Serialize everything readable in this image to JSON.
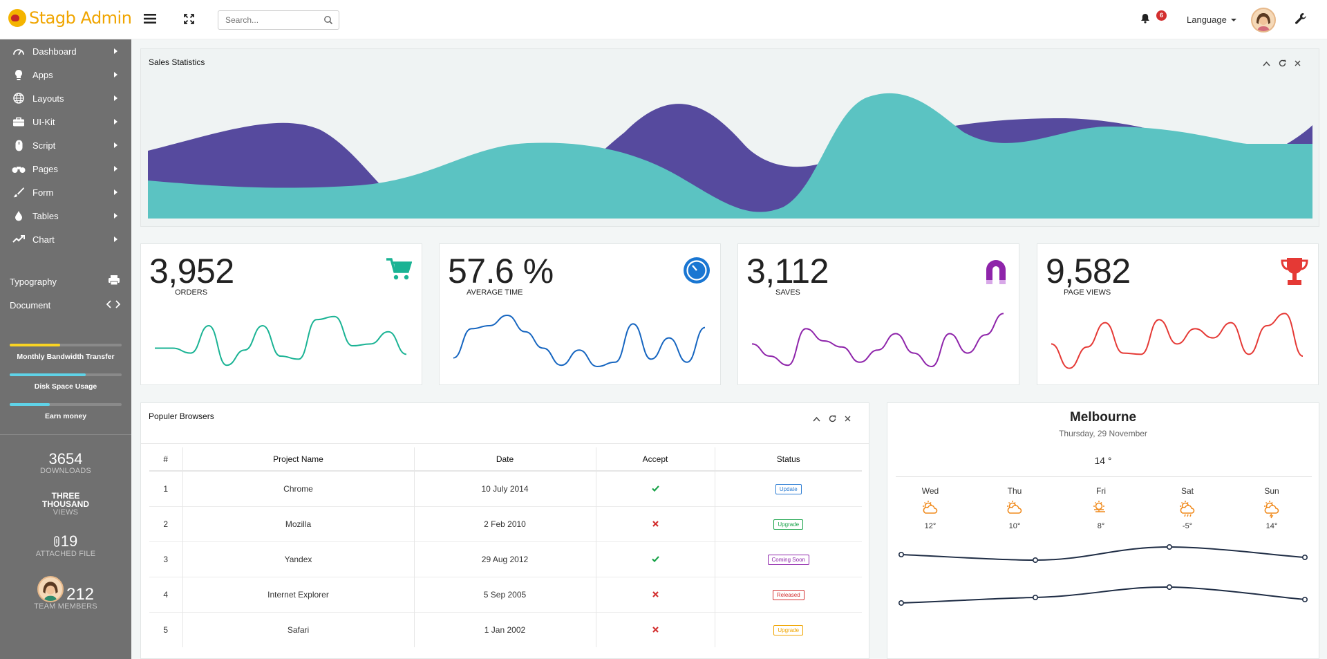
{
  "app": {
    "logo_text": "Stagb Admin"
  },
  "header": {
    "search_placeholder": "Search...",
    "notification_count": "6",
    "language_label": "Language"
  },
  "sidebar": {
    "nav": [
      {
        "label": "Dashboard",
        "icon": "speedometer-icon"
      },
      {
        "label": "Apps",
        "icon": "lightbulb-icon"
      },
      {
        "label": "Layouts",
        "icon": "globe-icon"
      },
      {
        "label": "UI-Kit",
        "icon": "briefcase-icon"
      },
      {
        "label": "Script",
        "icon": "mouse-icon"
      },
      {
        "label": "Pages",
        "icon": "binoculars-icon"
      },
      {
        "label": "Form",
        "icon": "brush-icon"
      },
      {
        "label": "Tables",
        "icon": "drop-icon"
      },
      {
        "label": "Chart",
        "icon": "trend-icon"
      }
    ],
    "extras": [
      {
        "label": "Typography",
        "icon": "printer-icon"
      },
      {
        "label": "Document",
        "icon": "code-icon"
      }
    ],
    "progress": [
      {
        "label": "Monthly Bandwidth Transfer",
        "value": 0.45,
        "color": "#f9d423"
      },
      {
        "label": "Disk Space Usage",
        "value": 0.68,
        "color": "#5fd3e8"
      },
      {
        "label": "Earn money",
        "value": 0.36,
        "color": "#5fd3e8"
      }
    ],
    "stats": {
      "downloads_num": "3654",
      "downloads_lbl": "DOWNLOADS",
      "views_line1": "THREE",
      "views_line2": "THOUSAND",
      "views_lbl": "VIEWS",
      "files_num": "19",
      "files_lbl": "ATTACHED FILE",
      "team_num": "212",
      "team_lbl": "TEAM MEMBERS"
    }
  },
  "sales_statistics": {
    "title": "Sales Statistics"
  },
  "cards": [
    {
      "value": "3,952",
      "label": "ORDERS",
      "icon": "cart-icon",
      "color": "#1ab394",
      "spark": [
        0.62,
        0.62,
        0.7,
        0.25,
        0.9,
        0.65,
        0.25,
        0.75,
        0.8,
        0.15,
        0.1,
        0.58,
        0.55,
        0.35,
        0.72
      ]
    },
    {
      "value": "57.6 %",
      "label": "AVERAGE TIME",
      "icon": "clock-icon",
      "color": "#1565c0",
      "spark": [
        0.78,
        0.3,
        0.25,
        0.08,
        0.35,
        0.62,
        0.9,
        0.65,
        0.92,
        0.85,
        0.22,
        0.8,
        0.45,
        0.85,
        0.28
      ]
    },
    {
      "value": "3,112",
      "label": "SAVES",
      "icon": "magnet-icon",
      "color": "#8e24aa",
      "spark": [
        0.55,
        0.75,
        0.9,
        0.3,
        0.5,
        0.6,
        0.85,
        0.65,
        0.38,
        0.7,
        0.92,
        0.38,
        0.7,
        0.4,
        0.05
      ]
    },
    {
      "value": "9,582",
      "label": "PAGE VIEWS",
      "icon": "trophy-icon",
      "color": "#e53935",
      "spark": [
        0.55,
        0.95,
        0.6,
        0.2,
        0.7,
        0.72,
        0.15,
        0.55,
        0.3,
        0.45,
        0.2,
        0.72,
        0.25,
        0.05,
        0.75
      ]
    }
  ],
  "browsers": {
    "title": "Populer Browsers",
    "columns": [
      "#",
      "Project Name",
      "Date",
      "Accept",
      "Status"
    ],
    "rows": [
      {
        "num": "1",
        "name": "Chrome",
        "date": "10 July 2014",
        "accept": true,
        "status": "Update",
        "status_color": "#2b7cd3"
      },
      {
        "num": "2",
        "name": "Mozilla",
        "date": "2 Feb 2010",
        "accept": false,
        "status": "Upgrade",
        "status_color": "#1aa34a"
      },
      {
        "num": "3",
        "name": "Yandex",
        "date": "29 Aug 2012",
        "accept": true,
        "status": "Coming Soon",
        "status_color": "#8e24aa"
      },
      {
        "num": "4",
        "name": "Internet Explorer",
        "date": "5 Sep 2005",
        "accept": false,
        "status": "Released",
        "status_color": "#d32f2f"
      },
      {
        "num": "5",
        "name": "Safari",
        "date": "1 Jan 2002",
        "accept": false,
        "status": "Upgrade",
        "status_color": "#f0a500"
      }
    ]
  },
  "weather": {
    "city": "Melbourne",
    "date": "Thursday, 29 November",
    "current_temp": "14 °",
    "days": [
      {
        "day": "Wed",
        "temp": "12°",
        "icon": "cloudy-sun-icon"
      },
      {
        "day": "Thu",
        "temp": "10°",
        "icon": "sun-cloud-icon"
      },
      {
        "day": "Fri",
        "temp": "8°",
        "icon": "sun-wind-icon"
      },
      {
        "day": "Sat",
        "temp": "-5°",
        "icon": "sun-rain-icon"
      },
      {
        "day": "Sun",
        "temp": "14°",
        "icon": "sun-storm-icon"
      }
    ]
  }
}
